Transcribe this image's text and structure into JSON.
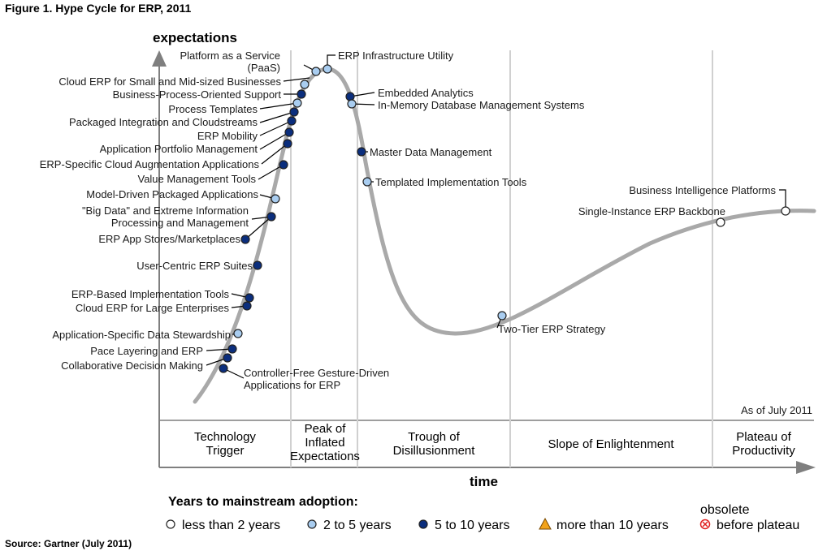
{
  "chart_data": {
    "type": "hype-cycle",
    "title": "Figure 1. Hype Cycle for ERP, 2011",
    "ylabel": "expectations",
    "xlabel": "time",
    "as_of": "As of July 2011",
    "source": "Source: Gartner (July 2011)",
    "phases": [
      {
        "lines": [
          "Technology",
          "Trigger"
        ]
      },
      {
        "lines": [
          "Peak of",
          "Inflated",
          "Expectations"
        ]
      },
      {
        "lines": [
          "Trough of",
          "Disillusionment"
        ]
      },
      {
        "lines": [
          "Slope of Enlightenment"
        ]
      },
      {
        "lines": [
          "Plateau of",
          "Productivity"
        ]
      }
    ],
    "legend_title": "Years to mainstream adoption:",
    "legend": [
      {
        "key": "lt2",
        "label": "less than 2 years",
        "color": "#ffffff",
        "shape": "circle"
      },
      {
        "key": "2to5",
        "label": "2 to 5 years",
        "color": "#a9cdf0",
        "shape": "circle"
      },
      {
        "key": "5to10",
        "label": "5 to 10 years",
        "color": "#0b2e7d",
        "shape": "circle"
      },
      {
        "key": "gt10",
        "label": "more than 10 years",
        "color": "#f2a31b",
        "shape": "triangle"
      },
      {
        "key": "obsolete",
        "label_lines": [
          "obsolete",
          "before plateau"
        ],
        "color": "#e02020",
        "shape": "x-circle"
      }
    ],
    "technologies": [
      {
        "label": "Controller-Free Gesture-Driven Applications for ERP",
        "lines": [
          "Controller-Free Gesture-Driven",
          "Applications for ERP"
        ],
        "category": "5to10"
      },
      {
        "label": "Collaborative Decision Making",
        "lines": [
          "Collaborative Decision Making"
        ],
        "category": "5to10"
      },
      {
        "label": "Pace Layering and ERP",
        "lines": [
          "Pace Layering and ERP"
        ],
        "category": "5to10"
      },
      {
        "label": "Application-Specific Data Stewardship",
        "lines": [
          "Application-Specific Data Stewardship"
        ],
        "category": "2to5"
      },
      {
        "label": "Cloud ERP for Large Enterprises",
        "lines": [
          "Cloud ERP for Large Enterprises"
        ],
        "category": "5to10"
      },
      {
        "label": "ERP-Based Implementation Tools",
        "lines": [
          "ERP-Based Implementation Tools"
        ],
        "category": "5to10"
      },
      {
        "label": "User-Centric ERP Suites",
        "lines": [
          "User-Centric ERP Suites"
        ],
        "category": "5to10"
      },
      {
        "label": "ERP App Stores/Marketplaces",
        "lines": [
          "ERP App Stores/Marketplaces"
        ],
        "category": "5to10"
      },
      {
        "label": "\"Big Data\" and Extreme Information Processing and Management",
        "lines": [
          "\"Big Data\" and Extreme Information",
          "Processing and Management"
        ],
        "category": "5to10"
      },
      {
        "label": "Model-Driven Packaged Applications",
        "lines": [
          "Model-Driven Packaged Applications"
        ],
        "category": "2to5"
      },
      {
        "label": "Value Management Tools",
        "lines": [
          "Value Management Tools"
        ],
        "category": "5to10"
      },
      {
        "label": "ERP-Specific Cloud Augmentation Applications",
        "lines": [
          "ERP-Specific Cloud Augmentation Applications"
        ],
        "category": "5to10"
      },
      {
        "label": "Application Portfolio Management",
        "lines": [
          "Application Portfolio Management"
        ],
        "category": "5to10"
      },
      {
        "label": "ERP Mobility",
        "lines": [
          "ERP Mobility"
        ],
        "category": "5to10"
      },
      {
        "label": "Packaged Integration and Cloudstreams",
        "lines": [
          "Packaged Integration and Cloudstreams"
        ],
        "category": "5to10"
      },
      {
        "label": "Process Templates",
        "lines": [
          "Process Templates"
        ],
        "category": "2to5"
      },
      {
        "label": "Business-Process-Oriented Support",
        "lines": [
          "Business-Process-Oriented Support"
        ],
        "category": "5to10"
      },
      {
        "label": "Cloud ERP for Small and Mid-sized Businesses",
        "lines": [
          "Cloud ERP for Small and Mid-sized Businesses"
        ],
        "category": "2to5"
      },
      {
        "label": "Platform as a Service (PaaS)",
        "lines": [
          "Platform as a Service",
          "(PaaS)"
        ],
        "category": "2to5"
      },
      {
        "label": "ERP Infrastructure Utility",
        "lines": [
          "ERP Infrastructure Utility"
        ],
        "category": "2to5"
      },
      {
        "label": "Embedded Analytics",
        "lines": [
          "Embedded Analytics"
        ],
        "category": "5to10"
      },
      {
        "label": "In-Memory Database Management Systems",
        "lines": [
          "In-Memory Database Management Systems"
        ],
        "category": "2to5"
      },
      {
        "label": "Master Data Management",
        "lines": [
          "Master Data Management"
        ],
        "category": "5to10"
      },
      {
        "label": "Templated Implementation Tools",
        "lines": [
          "Templated Implementation Tools"
        ],
        "category": "2to5"
      },
      {
        "label": "Two-Tier ERP Strategy",
        "lines": [
          "Two-Tier ERP Strategy"
        ],
        "category": "2to5"
      },
      {
        "label": "Single-Instance ERP Backbone",
        "lines": [
          "Single-Instance ERP Backbone"
        ],
        "category": "lt2"
      },
      {
        "label": "Business Intelligence Platforms",
        "lines": [
          "Business Intelligence Platforms"
        ],
        "category": "lt2"
      }
    ]
  }
}
